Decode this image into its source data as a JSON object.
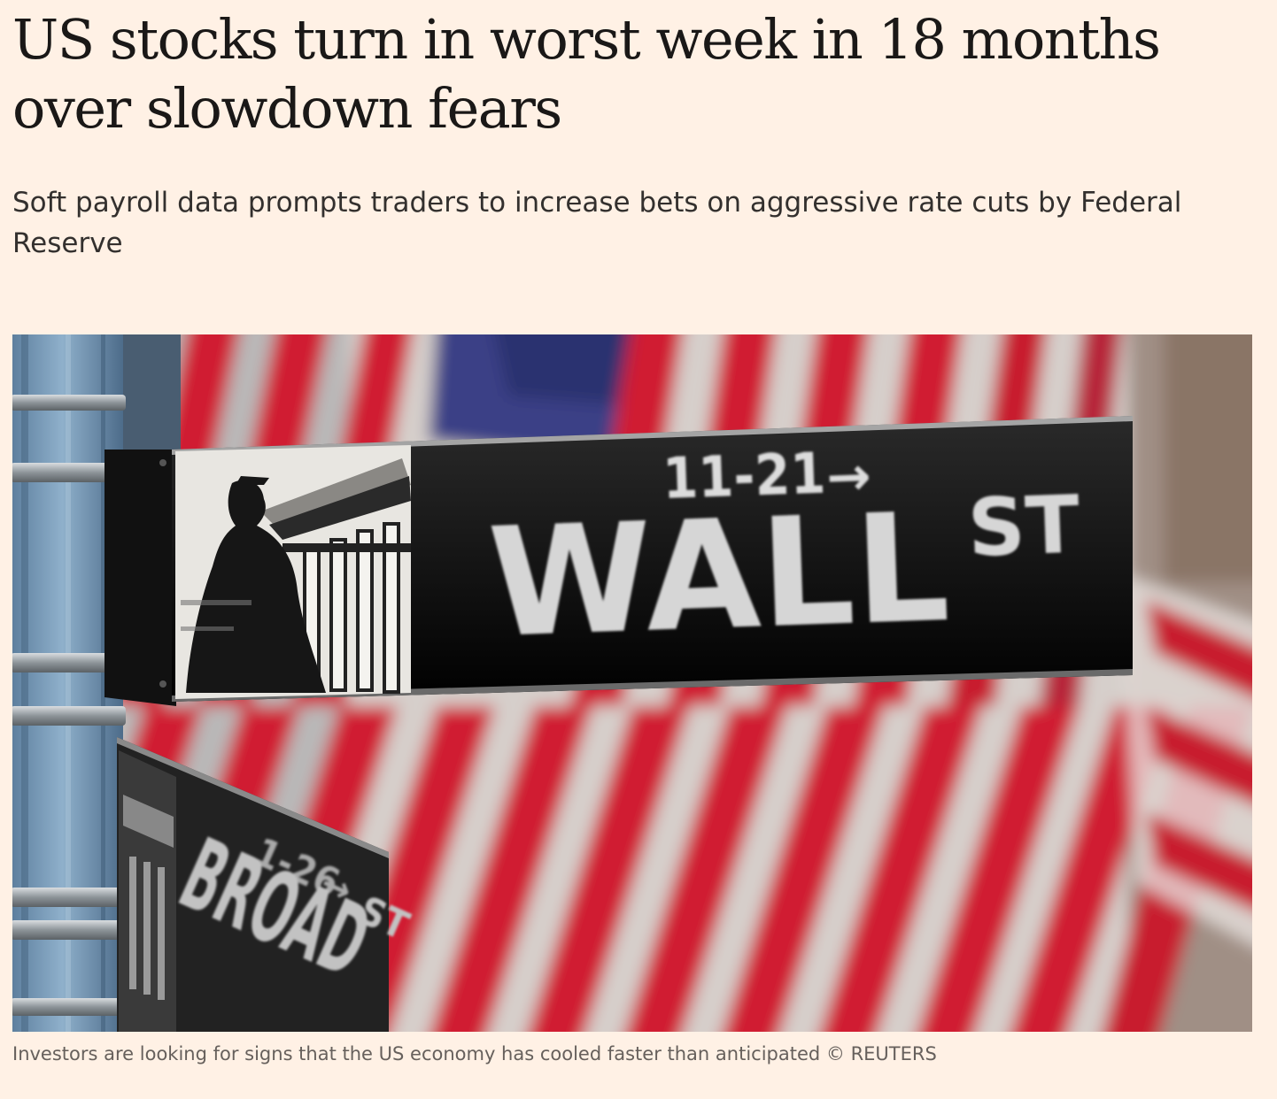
{
  "article": {
    "headline": "US stocks turn in worst week in 18 months over slowdown fears",
    "standfirst": "Soft payroll data prompts traders to increase bets on aggressive rate cuts by Federal Reserve",
    "caption": "Investors are looking for signs that the US economy has cooled faster than anticipated © REUTERS"
  },
  "image": {
    "wall_sign": {
      "numbers": "11-21",
      "arrow": "→",
      "street": "WALL",
      "suffix": "ST"
    },
    "broad_sign": {
      "numbers": "1-26",
      "arrow": "→",
      "street": "BROAD",
      "suffix": "ST"
    }
  },
  "colors": {
    "background": "#fff1e5",
    "headline": "#1a1817",
    "standfirst": "#33302e",
    "caption": "#66605c",
    "flag_red": "#c8102e",
    "flag_white": "#f3f0ee",
    "flag_blue": "#3b3f86"
  }
}
